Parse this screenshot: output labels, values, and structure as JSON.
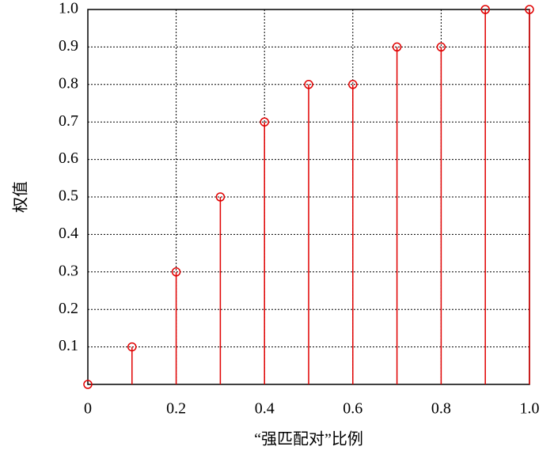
{
  "chart_data": {
    "type": "stem",
    "x_label": "“强匹配对”比例",
    "y_label": "权值",
    "x": [
      0,
      0.1,
      0.2,
      0.3,
      0.4,
      0.5,
      0.6,
      0.7,
      0.8,
      0.9,
      1.0
    ],
    "values": [
      0,
      0.1,
      0.3,
      0.5,
      0.7,
      0.8,
      0.8,
      0.9,
      0.9,
      1.0,
      1.0
    ],
    "color": "#e00000",
    "xlim": [
      0,
      1
    ],
    "ylim": [
      0,
      1
    ],
    "xticks": [
      0,
      0.2,
      0.4,
      0.6,
      0.8,
      {
        "value": 1,
        "label": "1.0"
      }
    ],
    "yticks": [
      0.1,
      0.2,
      0.3,
      0.4,
      0.5,
      0.6,
      0.7,
      0.8,
      0.9,
      {
        "value": 1,
        "label": "1.0"
      }
    ],
    "grid": true
  }
}
